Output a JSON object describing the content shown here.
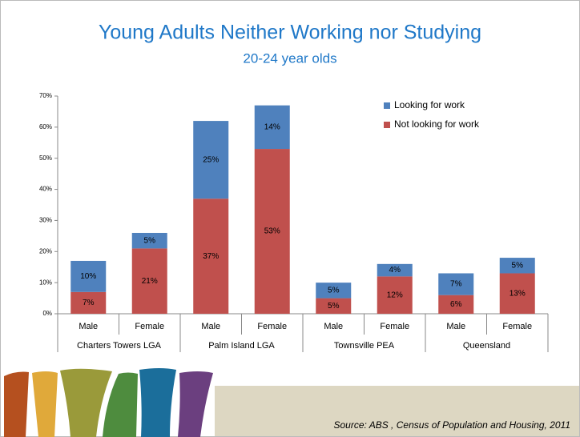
{
  "chart_data": {
    "type": "stacked-bar",
    "title": "Young Adults Neither Working nor Studying",
    "subtitle": "20-24 year olds",
    "categories": [
      "Male",
      "Female",
      "Male",
      "Female",
      "Male",
      "Female",
      "Male",
      "Female"
    ],
    "groups": [
      "Charters Towers LGA",
      "Palm Island LGA",
      "Townsville PEA",
      "Queensland"
    ],
    "series": [
      {
        "name": "Not looking for work",
        "color": "#c0504d",
        "values": [
          7,
          21,
          37,
          53,
          5,
          12,
          6,
          13
        ],
        "value_labels": [
          "7%",
          "21%",
          "37%",
          "53%",
          "5%",
          "12%",
          "6%",
          "13%"
        ]
      },
      {
        "name": "Looking for work",
        "color": "#4f81bd",
        "values": [
          10,
          5,
          25,
          14,
          5,
          4,
          7,
          5
        ],
        "value_labels": [
          "10%",
          "5%",
          "25%",
          "14%",
          "5%",
          "4%",
          "7%",
          "5%"
        ]
      }
    ],
    "ylim": [
      0,
      70
    ],
    "yticks": [
      {
        "value": 0,
        "label": "0%"
      },
      {
        "value": 10,
        "label": "10%"
      },
      {
        "value": 20,
        "label": "20%"
      },
      {
        "value": 30,
        "label": "30%"
      },
      {
        "value": 40,
        "label": "40%"
      },
      {
        "value": 50,
        "label": "50%"
      },
      {
        "value": 60,
        "label": "60%"
      },
      {
        "value": 70,
        "label": "70%"
      }
    ],
    "legend": "top-right",
    "source": "Source: ABS , Census of Population and Housing, 2011"
  }
}
